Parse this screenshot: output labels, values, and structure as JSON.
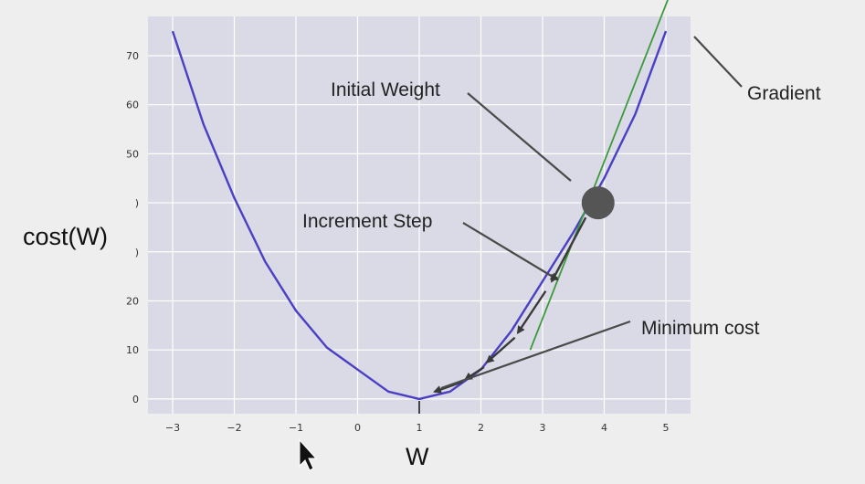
{
  "chart_data": {
    "type": "line",
    "title": "",
    "xlabel": "W",
    "ylabel": "cost(W)",
    "xlim": [
      -3.4,
      5.4
    ],
    "ylim": [
      -3,
      78
    ],
    "grid": true,
    "xticks": [
      -3,
      -2,
      -1,
      0,
      1,
      2,
      3,
      4,
      5
    ],
    "yticks": [
      0,
      10,
      20,
      30,
      40,
      50,
      60,
      70
    ],
    "ytick_labels": [
      "0",
      "10",
      "20",
      ")",
      ")",
      "50",
      "60",
      "70"
    ],
    "series": [
      {
        "type": "line",
        "color": "#4b3fc4",
        "x": [
          -3,
          -2.5,
          -2,
          -1.5,
          -1,
          -0.5,
          0,
          0.5,
          1,
          1.5,
          2,
          2.5,
          3,
          3.5,
          4,
          4.5,
          5
        ],
        "y": [
          75,
          56,
          41,
          28,
          18,
          10.5,
          6,
          1.5,
          0,
          1.5,
          6,
          14,
          24,
          34,
          45,
          58,
          75
        ]
      },
      {
        "type": "line",
        "color": "#3c9a3c",
        "x": [
          2.8,
          5.05
        ],
        "y": [
          10,
          82
        ]
      }
    ],
    "points": [
      {
        "x": 3.9,
        "y": 40,
        "color": "#555555"
      }
    ],
    "arrows": [
      {
        "from": [
          3.7,
          37
        ],
        "to": [
          3.15,
          24
        ]
      },
      {
        "from": [
          3.05,
          22
        ],
        "to": [
          2.6,
          13.5
        ]
      },
      {
        "from": [
          2.55,
          12.5
        ],
        "to": [
          2.1,
          7.5
        ]
      },
      {
        "from": [
          2.05,
          6.5
        ],
        "to": [
          1.75,
          4
        ]
      },
      {
        "from": [
          1.7,
          3.5
        ],
        "to": [
          1.25,
          1.5
        ]
      }
    ],
    "annotations": [
      {
        "text": "Initial Weight",
        "color": "#222222"
      },
      {
        "text": "Increment Step",
        "color": "#222222"
      },
      {
        "text": "Minimum cost",
        "color": "#222222"
      },
      {
        "text": "Gradient",
        "color": "#222222"
      }
    ],
    "colors": {
      "plot_background": "#d9dae5",
      "grid": "#ffffff",
      "page_background": "#eeeeee"
    }
  }
}
